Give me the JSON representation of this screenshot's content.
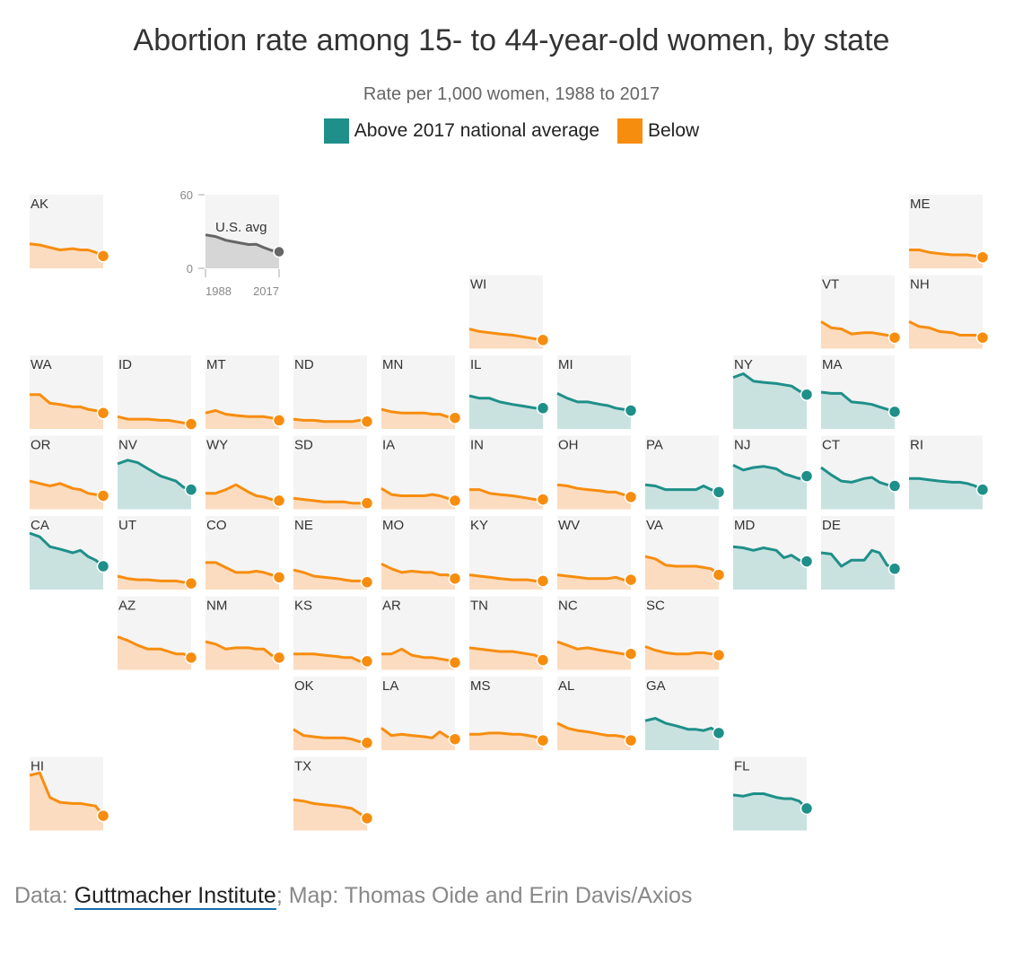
{
  "chart_data": {
    "type": "line",
    "title": "Abortion rate among 15- to 44-year-old women, by state",
    "subtitle": "Rate per 1,000 women, 1988 to 2017",
    "legend": [
      {
        "label": "Above 2017 national average",
        "color": "#1f8f89"
      },
      {
        "label": "Below",
        "color": "#f78d0f"
      }
    ],
    "colors": {
      "above_line": "#1f8f89",
      "above_fill": "#c9e2e0",
      "below_line": "#f78d0f",
      "below_fill": "#fbdcc0",
      "avg_line": "#666666",
      "avg_fill": "#d6d6d6",
      "cell_bg": "#f4f4f4"
    },
    "ylim": [
      0,
      60
    ],
    "x": [
      1988,
      1992,
      1996,
      2000,
      2005,
      2008,
      2011,
      2014,
      2017
    ],
    "national_average": {
      "label": "U.S. avg",
      "y_ticks": [
        "60",
        "0"
      ],
      "x_ticks": [
        "1988",
        "2017"
      ],
      "values": [
        27.3,
        25.9,
        22.9,
        21.3,
        19.4,
        19.6,
        16.9,
        14.6,
        13.5
      ]
    },
    "states": [
      {
        "abbr": "AK",
        "row": 0,
        "col": 0,
        "above": false,
        "values": [
          20,
          19,
          17,
          15,
          16,
          15,
          15,
          13,
          10
        ]
      },
      {
        "abbr": "ME",
        "row": 0,
        "col": 10,
        "above": false,
        "values": [
          15,
          15,
          13,
          12,
          11,
          11,
          11,
          10,
          9
        ]
      },
      {
        "abbr": "WI",
        "row": 1,
        "col": 5,
        "above": false,
        "values": [
          16,
          14,
          13,
          12,
          11,
          10,
          9,
          8,
          7
        ]
      },
      {
        "abbr": "VT",
        "row": 1,
        "col": 9,
        "above": false,
        "values": [
          22,
          17,
          16,
          12,
          13,
          13,
          12,
          11,
          9
        ]
      },
      {
        "abbr": "NH",
        "row": 1,
        "col": 10,
        "above": false,
        "values": [
          22,
          18,
          17,
          14,
          13,
          11,
          11,
          11,
          9
        ]
      },
      {
        "abbr": "WA",
        "row": 2,
        "col": 0,
        "above": false,
        "values": [
          28,
          28,
          21,
          20,
          18,
          18,
          16,
          15,
          13
        ]
      },
      {
        "abbr": "ID",
        "row": 2,
        "col": 1,
        "above": false,
        "values": [
          10,
          8,
          8,
          8,
          7,
          7,
          6,
          5,
          4
        ]
      },
      {
        "abbr": "MT",
        "row": 2,
        "col": 2,
        "above": false,
        "values": [
          13,
          15,
          12,
          11,
          10,
          10,
          10,
          9,
          7
        ]
      },
      {
        "abbr": "ND",
        "row": 2,
        "col": 3,
        "above": false,
        "values": [
          8,
          7,
          7,
          6,
          6,
          6,
          6,
          7,
          6
        ]
      },
      {
        "abbr": "MN",
        "row": 2,
        "col": 4,
        "above": false,
        "values": [
          16,
          14,
          13,
          13,
          13,
          12,
          12,
          10,
          9
        ]
      },
      {
        "abbr": "IL",
        "row": 2,
        "col": 5,
        "above": true,
        "values": [
          27,
          25,
          25,
          22,
          20,
          19,
          18,
          17,
          17
        ]
      },
      {
        "abbr": "MI",
        "row": 2,
        "col": 6,
        "above": true,
        "values": [
          29,
          25,
          22,
          22,
          20,
          19,
          17,
          16,
          15
        ]
      },
      {
        "abbr": "NY",
        "row": 2,
        "col": 8,
        "above": true,
        "values": [
          42,
          45,
          39,
          38,
          37,
          36,
          35,
          31,
          28
        ]
      },
      {
        "abbr": "MA",
        "row": 2,
        "col": 9,
        "above": true,
        "values": [
          30,
          29,
          29,
          22,
          21,
          20,
          18,
          16,
          14
        ]
      },
      {
        "abbr": "OR",
        "row": 3,
        "col": 0,
        "above": false,
        "values": [
          23,
          21,
          19,
          21,
          17,
          16,
          13,
          12,
          11
        ]
      },
      {
        "abbr": "NV",
        "row": 3,
        "col": 1,
        "above": true,
        "values": [
          37,
          40,
          38,
          33,
          27,
          25,
          23,
          18,
          16
        ]
      },
      {
        "abbr": "WY",
        "row": 3,
        "col": 2,
        "above": false,
        "values": [
          13,
          13,
          16,
          20,
          14,
          11,
          10,
          8,
          7
        ]
      },
      {
        "abbr": "SD",
        "row": 3,
        "col": 3,
        "above": false,
        "values": [
          9,
          8,
          7,
          6,
          6,
          6,
          5,
          5,
          5
        ]
      },
      {
        "abbr": "IA",
        "row": 3,
        "col": 4,
        "above": false,
        "values": [
          17,
          12,
          11,
          11,
          11,
          12,
          11,
          9,
          7
        ]
      },
      {
        "abbr": "IN",
        "row": 3,
        "col": 5,
        "above": false,
        "values": [
          16,
          16,
          13,
          12,
          11,
          10,
          9,
          8,
          8
        ]
      },
      {
        "abbr": "OH",
        "row": 3,
        "col": 6,
        "above": false,
        "values": [
          20,
          19,
          17,
          16,
          15,
          14,
          14,
          12,
          10
        ]
      },
      {
        "abbr": "PA",
        "row": 3,
        "col": 7,
        "above": true,
        "values": [
          20,
          19,
          16,
          16,
          16,
          16,
          19,
          16,
          14
        ]
      },
      {
        "abbr": "NJ",
        "row": 3,
        "col": 8,
        "above": true,
        "values": [
          36,
          32,
          34,
          35,
          33,
          29,
          27,
          25,
          27
        ]
      },
      {
        "abbr": "CT",
        "row": 3,
        "col": 9,
        "above": true,
        "values": [
          34,
          28,
          23,
          22,
          25,
          26,
          22,
          20,
          19
        ]
      },
      {
        "abbr": "RI",
        "row": 3,
        "col": 10,
        "above": true,
        "values": [
          25,
          25,
          24,
          23,
          22,
          22,
          21,
          19,
          16
        ]
      },
      {
        "abbr": "CA",
        "row": 4,
        "col": 0,
        "above": true,
        "values": [
          46,
          43,
          35,
          33,
          30,
          32,
          27,
          24,
          19
        ]
      },
      {
        "abbr": "UT",
        "row": 4,
        "col": 1,
        "above": false,
        "values": [
          11,
          9,
          8,
          8,
          7,
          7,
          7,
          6,
          5
        ]
      },
      {
        "abbr": "CO",
        "row": 4,
        "col": 2,
        "above": false,
        "values": [
          22,
          22,
          18,
          14,
          14,
          15,
          14,
          12,
          10
        ]
      },
      {
        "abbr": "NE",
        "row": 4,
        "col": 3,
        "above": false,
        "values": [
          16,
          14,
          11,
          10,
          9,
          8,
          7,
          7,
          6
        ]
      },
      {
        "abbr": "MO",
        "row": 4,
        "col": 4,
        "above": false,
        "values": [
          21,
          17,
          14,
          15,
          14,
          14,
          12,
          12,
          9
        ]
      },
      {
        "abbr": "KY",
        "row": 4,
        "col": 5,
        "above": false,
        "values": [
          12,
          11,
          10,
          9,
          8,
          8,
          8,
          7,
          7
        ]
      },
      {
        "abbr": "WV",
        "row": 4,
        "col": 6,
        "above": false,
        "values": [
          12,
          11,
          10,
          9,
          9,
          9,
          10,
          8,
          8
        ]
      },
      {
        "abbr": "VA",
        "row": 4,
        "col": 7,
        "above": false,
        "values": [
          27,
          25,
          20,
          19,
          19,
          19,
          18,
          17,
          12
        ]
      },
      {
        "abbr": "MD",
        "row": 4,
        "col": 8,
        "above": true,
        "values": [
          35,
          34,
          32,
          34,
          32,
          26,
          28,
          24,
          23
        ]
      },
      {
        "abbr": "DE",
        "row": 4,
        "col": 9,
        "above": true,
        "values": [
          30,
          29,
          19,
          24,
          24,
          32,
          30,
          20,
          17
        ]
      },
      {
        "abbr": "AZ",
        "row": 5,
        "col": 1,
        "above": false,
        "values": [
          27,
          24,
          20,
          17,
          17,
          15,
          13,
          13,
          10
        ]
      },
      {
        "abbr": "NM",
        "row": 5,
        "col": 2,
        "above": false,
        "values": [
          23,
          21,
          17,
          18,
          18,
          17,
          17,
          12,
          10
        ]
      },
      {
        "abbr": "KS",
        "row": 5,
        "col": 3,
        "above": false,
        "values": [
          13,
          13,
          13,
          12,
          11,
          10,
          10,
          7,
          7
        ]
      },
      {
        "abbr": "AR",
        "row": 5,
        "col": 4,
        "above": false,
        "values": [
          13,
          13,
          17,
          12,
          10,
          10,
          9,
          8,
          6
        ]
      },
      {
        "abbr": "TN",
        "row": 5,
        "col": 5,
        "above": false,
        "values": [
          18,
          17,
          16,
          15,
          15,
          14,
          13,
          12,
          8
        ]
      },
      {
        "abbr": "NC",
        "row": 5,
        "col": 6,
        "above": false,
        "values": [
          23,
          20,
          17,
          18,
          16,
          15,
          14,
          13,
          13
        ]
      },
      {
        "abbr": "SC",
        "row": 5,
        "col": 7,
        "above": false,
        "values": [
          19,
          16,
          14,
          13,
          13,
          14,
          14,
          13,
          12
        ]
      },
      {
        "abbr": "OK",
        "row": 6,
        "col": 3,
        "above": false,
        "values": [
          17,
          12,
          11,
          10,
          10,
          10,
          9,
          7,
          6
        ]
      },
      {
        "abbr": "LA",
        "row": 6,
        "col": 4,
        "above": false,
        "values": [
          18,
          12,
          13,
          12,
          11,
          10,
          15,
          11,
          9
        ]
      },
      {
        "abbr": "MS",
        "row": 6,
        "col": 5,
        "above": false,
        "values": [
          13,
          13,
          14,
          14,
          13,
          13,
          12,
          11,
          8
        ]
      },
      {
        "abbr": "AL",
        "row": 6,
        "col": 6,
        "above": false,
        "values": [
          22,
          18,
          16,
          15,
          13,
          12,
          12,
          11,
          8
        ]
      },
      {
        "abbr": "GA",
        "row": 6,
        "col": 7,
        "above": true,
        "values": [
          24,
          26,
          22,
          20,
          17,
          17,
          16,
          18,
          14
        ]
      },
      {
        "abbr": "HI",
        "row": 7,
        "col": 0,
        "above": false,
        "values": [
          45,
          47,
          27,
          23,
          22,
          22,
          21,
          20,
          12
        ]
      },
      {
        "abbr": "TX",
        "row": 7,
        "col": 3,
        "above": false,
        "values": [
          25,
          24,
          22,
          21,
          20,
          19,
          18,
          14,
          10
        ]
      },
      {
        "abbr": "FL",
        "row": 7,
        "col": 8,
        "above": true,
        "values": [
          29,
          28,
          30,
          30,
          27,
          26,
          26,
          24,
          18
        ]
      }
    ]
  },
  "source": {
    "prefix": "Data: ",
    "link_text": "Guttmacher Institute",
    "suffix": "; Map: Thomas Oide and Erin Davis/Axios"
  }
}
